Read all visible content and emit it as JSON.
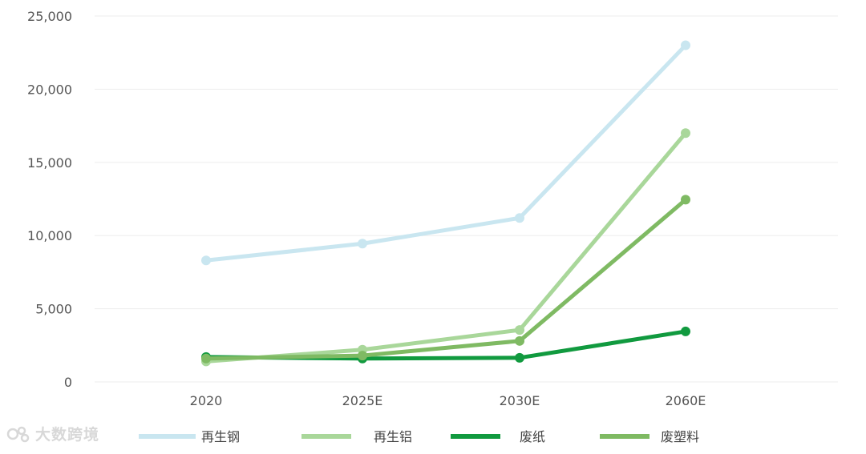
{
  "chart_data": {
    "type": "line",
    "title": "",
    "xlabel": "",
    "ylabel": "",
    "categories": [
      "2020",
      "2025E",
      "2030E",
      "2060E"
    ],
    "ylim": [
      0,
      25000
    ],
    "yticks": [
      0,
      5000,
      10000,
      15000,
      20000,
      25000
    ],
    "ytick_labels": [
      "0",
      "5,000",
      "10,000",
      "15,000",
      "20,000",
      "25,000"
    ],
    "grid": true,
    "legend_position": "bottom",
    "series": [
      {
        "name": "再生钢",
        "color": "#c9e6f0",
        "values": [
          8300,
          9450,
          11200,
          23000
        ]
      },
      {
        "name": "再生铝",
        "color": "#a9d79a",
        "values": [
          1400,
          2200,
          3550,
          17000
        ]
      },
      {
        "name": "废纸",
        "color": "#119a3f",
        "values": [
          1700,
          1600,
          1650,
          3450
        ]
      },
      {
        "name": "废塑料",
        "color": "#7fba63",
        "values": [
          1600,
          1800,
          2800,
          12450
        ]
      }
    ]
  },
  "watermark": {
    "text": "大数跨境"
  }
}
